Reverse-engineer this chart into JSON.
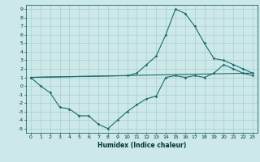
{
  "xlabel": "Humidex (Indice chaleur)",
  "bg_color": "#cce8e8",
  "line_color": "#1a6b6b",
  "grid_color": "#aacccc",
  "xlim": [
    -0.5,
    23.5
  ],
  "ylim": [
    -5.5,
    9.5
  ],
  "xticks": [
    0,
    1,
    2,
    3,
    4,
    5,
    6,
    7,
    8,
    9,
    10,
    11,
    12,
    13,
    14,
    15,
    16,
    17,
    18,
    19,
    20,
    21,
    22,
    23
  ],
  "yticks": [
    -5,
    -4,
    -3,
    -2,
    -1,
    0,
    1,
    2,
    3,
    4,
    5,
    6,
    7,
    8,
    9
  ],
  "line1_x": [
    0,
    1,
    2,
    3,
    4,
    5,
    6,
    7,
    8,
    9,
    10,
    11,
    12,
    13,
    14,
    15,
    16,
    17,
    18,
    19,
    20,
    21,
    22,
    23
  ],
  "line1_y": [
    1,
    0,
    -0.8,
    -2.5,
    -2.7,
    -3.5,
    -3.5,
    -4.5,
    -5,
    -4,
    -3,
    -2.2,
    -1.5,
    -1.2,
    1,
    1.2,
    1,
    1.2,
    1,
    1.5,
    2.5,
    2.0,
    1.5,
    1.2
  ],
  "line2_x": [
    0,
    10,
    11,
    12,
    13,
    14,
    15,
    16,
    17,
    18,
    19,
    20,
    21,
    22,
    23
  ],
  "line2_y": [
    1,
    1.2,
    1.5,
    2.5,
    3.5,
    6.0,
    9,
    8.5,
    7.0,
    5.0,
    3.2,
    3.0,
    2.5,
    2.0,
    1.5
  ],
  "line3_x": [
    0,
    23
  ],
  "line3_y": [
    1,
    1.5
  ]
}
